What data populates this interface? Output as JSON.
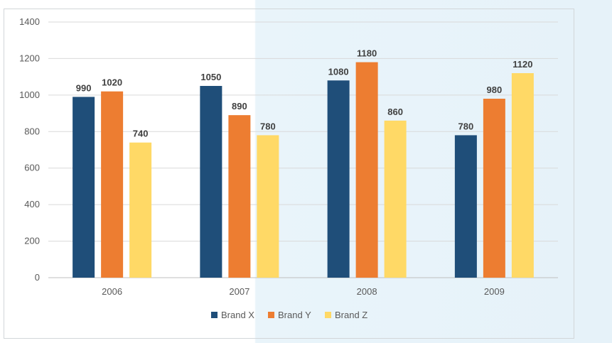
{
  "chart_data": {
    "type": "bar",
    "categories": [
      "2006",
      "2007",
      "2008",
      "2009"
    ],
    "series": [
      {
        "name": "Brand X",
        "color": "#1f4e79",
        "values": [
          990,
          1050,
          1080,
          780
        ]
      },
      {
        "name": "Brand Y",
        "color": "#ed7d31",
        "values": [
          1020,
          890,
          1180,
          980
        ]
      },
      {
        "name": "Brand Z",
        "color": "#ffd966",
        "values": [
          740,
          780,
          860,
          1120
        ]
      }
    ],
    "title": "",
    "xlabel": "",
    "ylabel": "",
    "ylim": [
      0,
      1400
    ],
    "yticks": [
      "0",
      "200",
      "400",
      "600",
      "800",
      "1000",
      "1200",
      "1400"
    ],
    "grid": true,
    "legend_position": "bottom",
    "data_labels": true
  }
}
